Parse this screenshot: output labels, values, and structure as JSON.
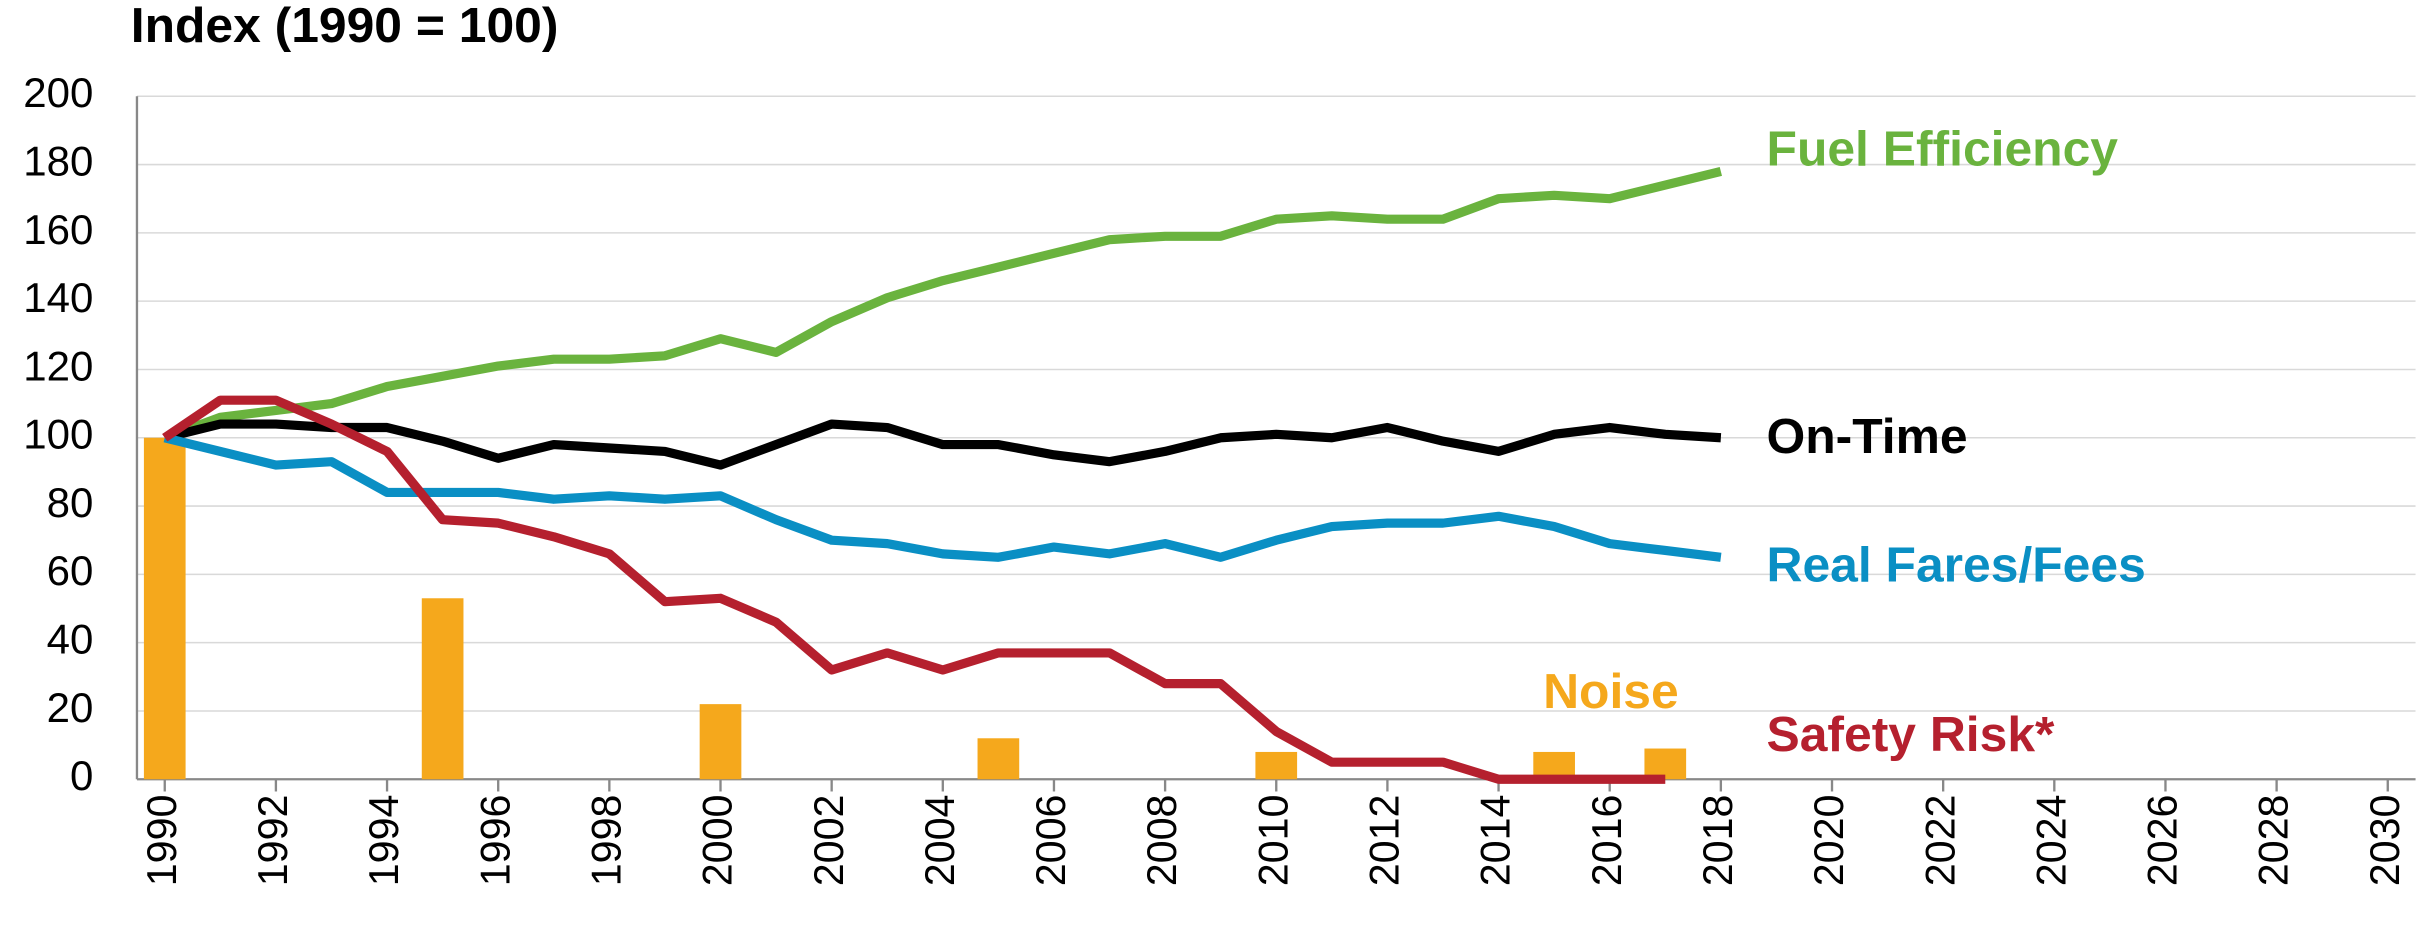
{
  "chart_data": {
    "type": "line",
    "y_axis_title": "Index (1990 = 100)",
    "x": [
      1990,
      1991,
      1992,
      1993,
      1994,
      1995,
      1996,
      1997,
      1998,
      1999,
      2000,
      2001,
      2002,
      2003,
      2004,
      2005,
      2006,
      2007,
      2008,
      2009,
      2010,
      2011,
      2012,
      2013,
      2014,
      2015,
      2016,
      2017,
      2018
    ],
    "series": [
      {
        "name": "Noise",
        "type": "bar",
        "color": "#f5a81c",
        "values": [
          100,
          null,
          null,
          null,
          null,
          53,
          null,
          null,
          null,
          null,
          22,
          null,
          null,
          null,
          null,
          12,
          null,
          null,
          null,
          null,
          8,
          null,
          null,
          null,
          null,
          8,
          null,
          9,
          null
        ]
      },
      {
        "name": "Fuel Efficiency",
        "color": "#6ab33e",
        "values": [
          100,
          106,
          108,
          110,
          115,
          118,
          121,
          123,
          123,
          124,
          129,
          125,
          134,
          141,
          146,
          150,
          154,
          158,
          159,
          159,
          164,
          165,
          164,
          164,
          170,
          171,
          170,
          174,
          178
        ]
      },
      {
        "name": "On-Time",
        "color": "#000000",
        "values": [
          100,
          104,
          104,
          103,
          103,
          99,
          94,
          98,
          97,
          96,
          92,
          98,
          104,
          103,
          98,
          98,
          95,
          93,
          96,
          100,
          101,
          100,
          103,
          99,
          96,
          101,
          103,
          101,
          100
        ]
      },
      {
        "name": "Real Fares/Fees",
        "color": "#0a8fc4",
        "values": [
          100,
          96,
          92,
          93,
          84,
          84,
          84,
          82,
          83,
          82,
          83,
          76,
          70,
          69,
          66,
          65,
          68,
          66,
          69,
          65,
          70,
          74,
          75,
          75,
          77,
          74,
          69,
          67,
          65
        ]
      },
      {
        "name": "Safety Risk*",
        "color": "#b5202e",
        "values": [
          100,
          111,
          111,
          104,
          96,
          76,
          75,
          71,
          66,
          52,
          53,
          46,
          32,
          37,
          32,
          37,
          37,
          37,
          28,
          28,
          14,
          5,
          5,
          5,
          0,
          0,
          0,
          0,
          null
        ]
      }
    ],
    "xlim": [
      1989.5,
      2030.5
    ],
    "xticks": [
      1990,
      1992,
      1994,
      1996,
      1998,
      2000,
      2002,
      2004,
      2006,
      2008,
      2010,
      2012,
      2014,
      2016,
      2018,
      2020,
      2022,
      2024,
      2026,
      2028,
      2030
    ],
    "ylim": [
      0,
      200
    ],
    "yticks": [
      0,
      20,
      40,
      60,
      80,
      100,
      120,
      140,
      160,
      180,
      200
    ],
    "grid": true
  }
}
